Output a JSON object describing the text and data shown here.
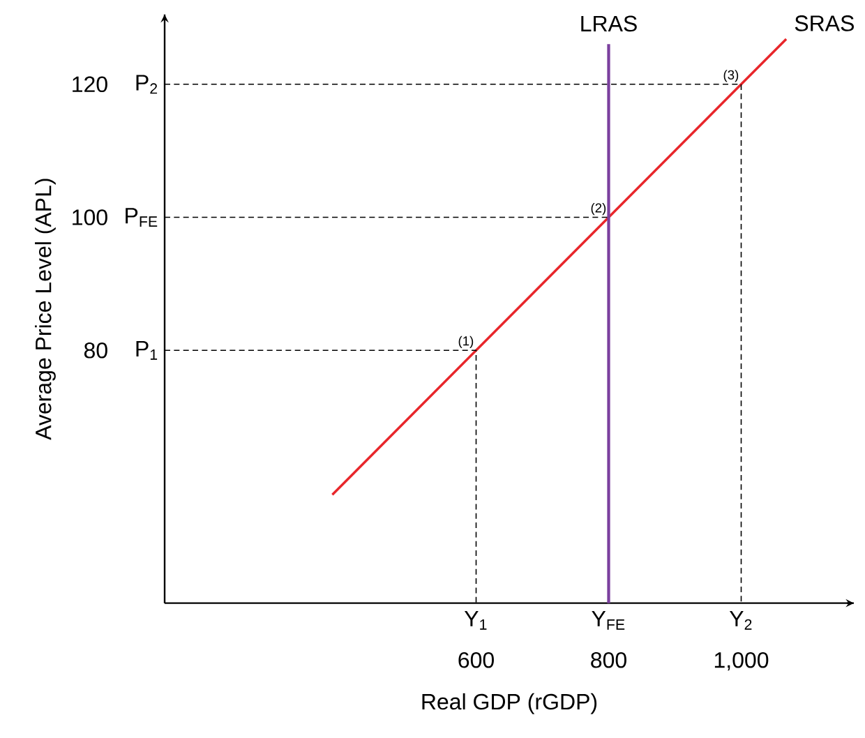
{
  "chart_data": {
    "type": "line",
    "xlabel": "Real GDP (rGDP)",
    "ylabel": "Average Price Level (APL)",
    "xlim": [
      130,
      1170
    ],
    "ylim": [
      42,
      130.5
    ],
    "xticks": [
      {
        "value": 600,
        "label": "600"
      },
      {
        "value": 800,
        "label": "800"
      },
      {
        "value": 1000,
        "label": "1,000"
      }
    ],
    "yticks": [
      {
        "value": 80,
        "label": "80"
      },
      {
        "value": 100,
        "label": "100"
      },
      {
        "value": 120,
        "label": "120"
      }
    ],
    "series": [
      {
        "name": "SRAS",
        "color": "#e8262b",
        "x": [
          383,
          600,
          800,
          1000,
          1068
        ],
        "values": [
          58.3,
          80,
          100,
          120,
          126.8
        ]
      },
      {
        "color": "#000000",
        "line_style": "dashed",
        "x": [
          130,
          600,
          600
        ],
        "values": [
          80,
          80,
          42
        ]
      },
      {
        "color": "#000000",
        "line_style": "dashed",
        "x": [
          130,
          800,
          800
        ],
        "values": [
          100,
          100,
          42
        ]
      },
      {
        "color": "#000000",
        "line_style": "dashed",
        "x": [
          130,
          1000,
          1000
        ],
        "values": [
          120,
          120,
          42
        ]
      }
    ],
    "ref_lines": [
      {
        "axis": "x",
        "value": 800,
        "label": "LRAS",
        "color": "#7b3f9e"
      }
    ],
    "annotations": [
      {
        "text": "(1)",
        "x": 600,
        "y": 80
      },
      {
        "text": "(2)",
        "x": 800,
        "y": 100
      },
      {
        "text": "(3)",
        "x": 1000,
        "y": 120
      },
      {
        "text": "Y$_{1}$",
        "x": 600,
        "y": 42
      },
      {
        "text": "Y$_{FE}$",
        "x": 800,
        "y": 42
      },
      {
        "text": "Y$_{2}$",
        "x": 1000,
        "y": 42
      },
      {
        "text": "P$_{1}$",
        "x": 130,
        "y": 80
      },
      {
        "text": "P$_{FE}$",
        "x": 130,
        "y": 100
      },
      {
        "text": "P$_{2}$",
        "x": 130,
        "y": 120
      }
    ],
    "grid": false,
    "marker": "none"
  }
}
